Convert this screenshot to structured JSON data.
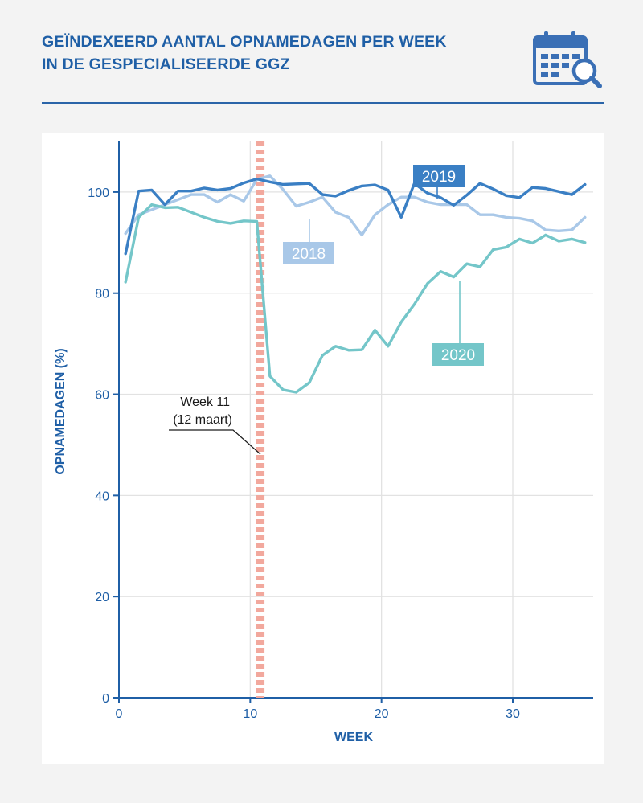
{
  "title": {
    "line1": "GEÏNDEXEERD AANTAL OPNAMEDAGEN PER WEEK",
    "line2": "IN DE GESPECIALISEERDE GGZ"
  },
  "icon": "calendar-search-icon",
  "colors": {
    "title": "#1f5fa6",
    "axis": "#1f5fa6",
    "s2018": "#a9c8e8",
    "s2019": "#3a7fc4",
    "s2020": "#74c6c9",
    "marker": "#f2a89d",
    "grid": "#e2e2e2"
  },
  "chart_data": {
    "type": "line",
    "xlabel": "WEEK",
    "ylabel": "OPNAMEDAGEN (%)",
    "xlim": [
      0,
      36
    ],
    "ylim": [
      0,
      110
    ],
    "xticks": [
      0,
      10,
      20,
      30
    ],
    "yticks": [
      0,
      20,
      40,
      60,
      80,
      100
    ],
    "grid": "both",
    "series": [
      {
        "name": "2018",
        "x": [
          0.5,
          1.5,
          2.5,
          3.5,
          4.5,
          5.5,
          6.5,
          7.5,
          8.5,
          9.5,
          10.5,
          11.5,
          12.5,
          13.5,
          14.5,
          15.5,
          16.5,
          17.5,
          18.5,
          19.5,
          20.5,
          21.5,
          22.5,
          23.5,
          24.5,
          25.5,
          26.5,
          27.5,
          28.5,
          29.5,
          30.5,
          31.5,
          32.5,
          33.5,
          34.5,
          35.5
        ],
        "values": [
          91.8,
          95.5,
          96.5,
          97.5,
          98.5,
          99.5,
          99.5,
          98.0,
          99.5,
          98.2,
          102.5,
          103.2,
          100.5,
          97.2,
          98.0,
          99.0,
          96.0,
          95.0,
          91.5,
          95.5,
          97.5,
          99.0,
          99.0,
          98.0,
          97.5,
          97.5,
          97.5,
          95.5,
          95.5,
          95.0,
          94.8,
          94.3,
          92.5,
          92.3,
          92.5,
          95.0
        ]
      },
      {
        "name": "2019",
        "x": [
          0.5,
          1.5,
          2.5,
          3.5,
          4.5,
          5.5,
          6.5,
          7.5,
          8.5,
          9.5,
          10.5,
          11.5,
          12.5,
          13.5,
          14.5,
          15.5,
          16.5,
          17.5,
          18.5,
          19.5,
          20.5,
          21.5,
          22.5,
          23.5,
          24.5,
          25.5,
          26.5,
          27.5,
          28.5,
          29.5,
          30.5,
          31.5,
          32.5,
          33.5,
          34.5,
          35.5
        ],
        "values": [
          87.8,
          100.2,
          100.4,
          97.5,
          100.2,
          100.2,
          100.8,
          100.4,
          100.7,
          101.8,
          102.6,
          102.0,
          101.5,
          101.6,
          101.7,
          99.5,
          99.2,
          100.3,
          101.2,
          101.4,
          100.4,
          95.0,
          101.7,
          99.8,
          98.9,
          97.4,
          99.4,
          101.7,
          100.6,
          99.3,
          98.9,
          100.9,
          100.7,
          100.1,
          99.5,
          101.5
        ]
      },
      {
        "name": "2020",
        "x": [
          0.5,
          1.5,
          2.5,
          3.5,
          4.5,
          5.5,
          6.5,
          7.5,
          8.5,
          9.5,
          10.5,
          11.5,
          12.5,
          13.5,
          14.5,
          15.5,
          16.5,
          17.5,
          18.5,
          19.5,
          20.5,
          21.5,
          22.5,
          23.5,
          24.5,
          25.5,
          26.5,
          27.5,
          28.5,
          29.5,
          30.5,
          31.5,
          32.5,
          33.5,
          34.5,
          35.5
        ],
        "values": [
          82.2,
          95.0,
          97.5,
          96.9,
          97.0,
          96.0,
          95.0,
          94.2,
          93.8,
          94.3,
          94.2,
          63.6,
          60.9,
          60.4,
          62.3,
          67.7,
          69.5,
          68.7,
          68.8,
          72.7,
          69.5,
          74.3,
          77.8,
          81.9,
          84.3,
          83.2,
          85.8,
          85.2,
          88.6,
          89.1,
          90.7,
          89.9,
          91.5,
          90.3,
          90.7,
          90.0
        ]
      }
    ],
    "series_labels": {
      "2019": "2019",
      "2018": "2018",
      "2020": "2020"
    },
    "annotations": [
      {
        "text_line1": "Week 11",
        "text_line2": "(12 maart)",
        "x": 10.75
      }
    ]
  }
}
